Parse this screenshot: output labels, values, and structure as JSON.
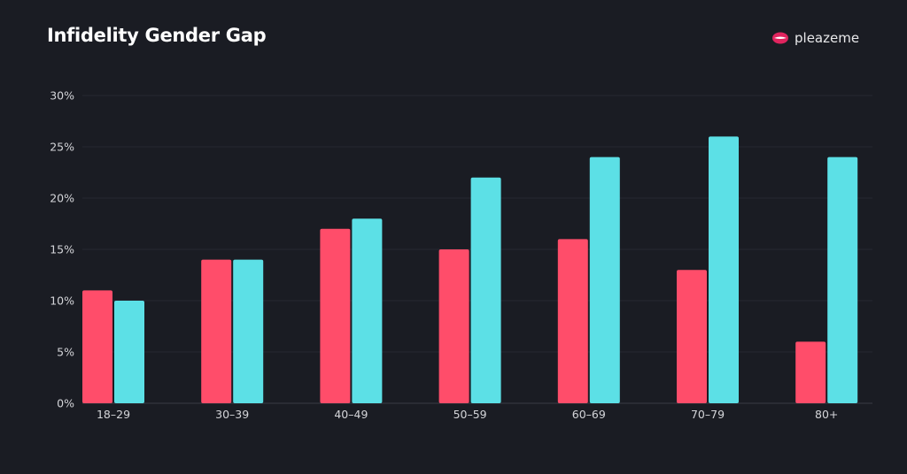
{
  "title": "Infidelity Gender Gap",
  "brand": {
    "name": "pleazeme",
    "icon": "lips-icon"
  },
  "chart_data": {
    "type": "bar",
    "title": "Infidelity Gender Gap",
    "categories": [
      "18–29",
      "30–39",
      "40–49",
      "50–59",
      "60–69",
      "70–79",
      "80+"
    ],
    "series": [
      {
        "color": "#ff4d6a",
        "values": [
          11,
          14,
          17,
          15,
          16,
          13,
          6
        ]
      },
      {
        "color": "#5ce0e6",
        "values": [
          10,
          14,
          18,
          22,
          24,
          26,
          24
        ]
      }
    ],
    "ylim": [
      0,
      30
    ],
    "yticks": [
      "0%",
      "5%",
      "10%",
      "15%",
      "20%",
      "25%",
      "30%"
    ],
    "grid": true,
    "legend": "none",
    "xlabel": "",
    "ylabel": ""
  }
}
